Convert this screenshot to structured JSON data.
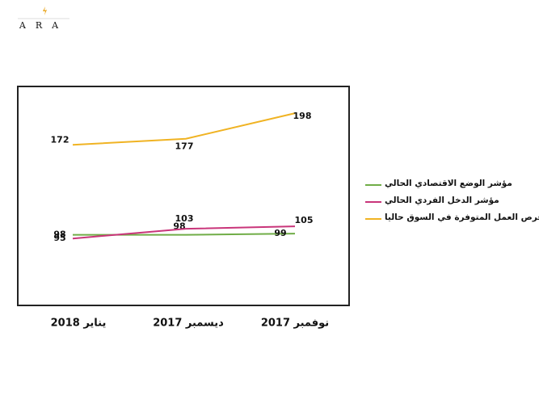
{
  "logo": "ARA",
  "chart_data": {
    "type": "line",
    "categories": [
      "يناير 2018",
      "ديسمبر 2017",
      "نوفمبر 2017"
    ],
    "series": [
      {
        "name": "مؤشر الوضع الاقتصادي الحالي",
        "color": "#70ad47",
        "values": [
          98,
          98,
          99
        ]
      },
      {
        "name": "مؤشر الدخل الفردي الحالي",
        "color": "#c9357a",
        "values": [
          95,
          103,
          105
        ]
      },
      {
        "name": "مؤشر فرص العمل المتوفرة في السوق حاليا",
        "color": "#f0b323",
        "values": [
          172,
          177,
          198
        ]
      }
    ],
    "ylim": [
      40,
      220
    ]
  }
}
